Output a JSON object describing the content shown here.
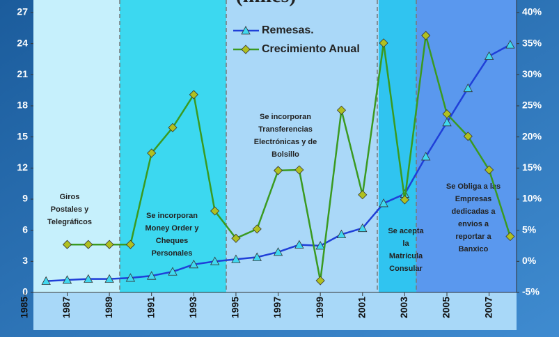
{
  "chart_data": {
    "type": "line",
    "title": "(miles)",
    "x": [
      1986,
      1987,
      1988,
      1989,
      1990,
      1991,
      1992,
      1993,
      1994,
      1995,
      1996,
      1997,
      1998,
      1999,
      2000,
      2001,
      2002,
      2003,
      2004,
      2005,
      2006,
      2007,
      2008
    ],
    "xlim": [
      1985.4,
      2008.3
    ],
    "xticks": [
      1985,
      1987,
      1989,
      1991,
      1993,
      1995,
      1997,
      1999,
      2001,
      2003,
      2005,
      2007
    ],
    "ylim": [
      0,
      27
    ],
    "yticks": [
      0,
      3,
      6,
      9,
      12,
      15,
      18,
      21,
      24,
      27
    ],
    "y2lim": [
      -5,
      40
    ],
    "y2ticks": [
      {
        "value": -5,
        "label": "-5%"
      },
      {
        "value": 0,
        "label": "0%"
      },
      {
        "value": 5,
        "label": "5%"
      },
      {
        "value": 10,
        "label": "10%"
      },
      {
        "value": 15,
        "label": "15%"
      },
      {
        "value": 20,
        "label": "20%"
      },
      {
        "value": 25,
        "label": "25%"
      },
      {
        "value": 30,
        "label": "30%"
      },
      {
        "value": 35,
        "label": "35%"
      },
      {
        "value": 40,
        "label": "40%"
      }
    ],
    "series": [
      {
        "name": "Remesas.",
        "color": "#1f3fd8",
        "marker_color": "#40d8f0",
        "values": [
          1.1,
          1.2,
          1.3,
          1.3,
          1.4,
          1.6,
          2.0,
          2.7,
          3.0,
          3.2,
          3.4,
          3.9,
          4.6,
          4.5,
          5.6,
          6.2,
          8.6,
          9.5,
          13.1,
          16.4,
          19.7,
          22.8,
          23.9
        ]
      },
      {
        "name": "Crecimiento Anual",
        "color": "#3a9a20",
        "marker_color": "#b0c020",
        "axis": "y2",
        "values": [
          null,
          2.7,
          2.7,
          2.7,
          2.7,
          17.4,
          21.5,
          26.8,
          8.1,
          3.7,
          5.2,
          14.6,
          14.7,
          -3.1,
          24.3,
          10.7,
          35.1,
          9.9,
          36.3,
          23.7,
          20.1,
          14.7,
          4.0
        ]
      }
    ],
    "annotations": [
      [
        "Giros",
        "Postales y",
        "Telegráficos"
      ],
      [
        "Se incorporan",
        "Money Order y",
        "Cheques",
        "Personales"
      ],
      [
        "Se incorporan",
        "Transferencias",
        "Electrónicas y de",
        "Bolsillo"
      ],
      [
        "Se acepta",
        "la",
        "Matrícula",
        "Consular"
      ],
      [
        "Se Obliga a las",
        "Empresas",
        "dedicadas a",
        "envios a",
        "reportar a",
        "Banxico"
      ]
    ]
  }
}
